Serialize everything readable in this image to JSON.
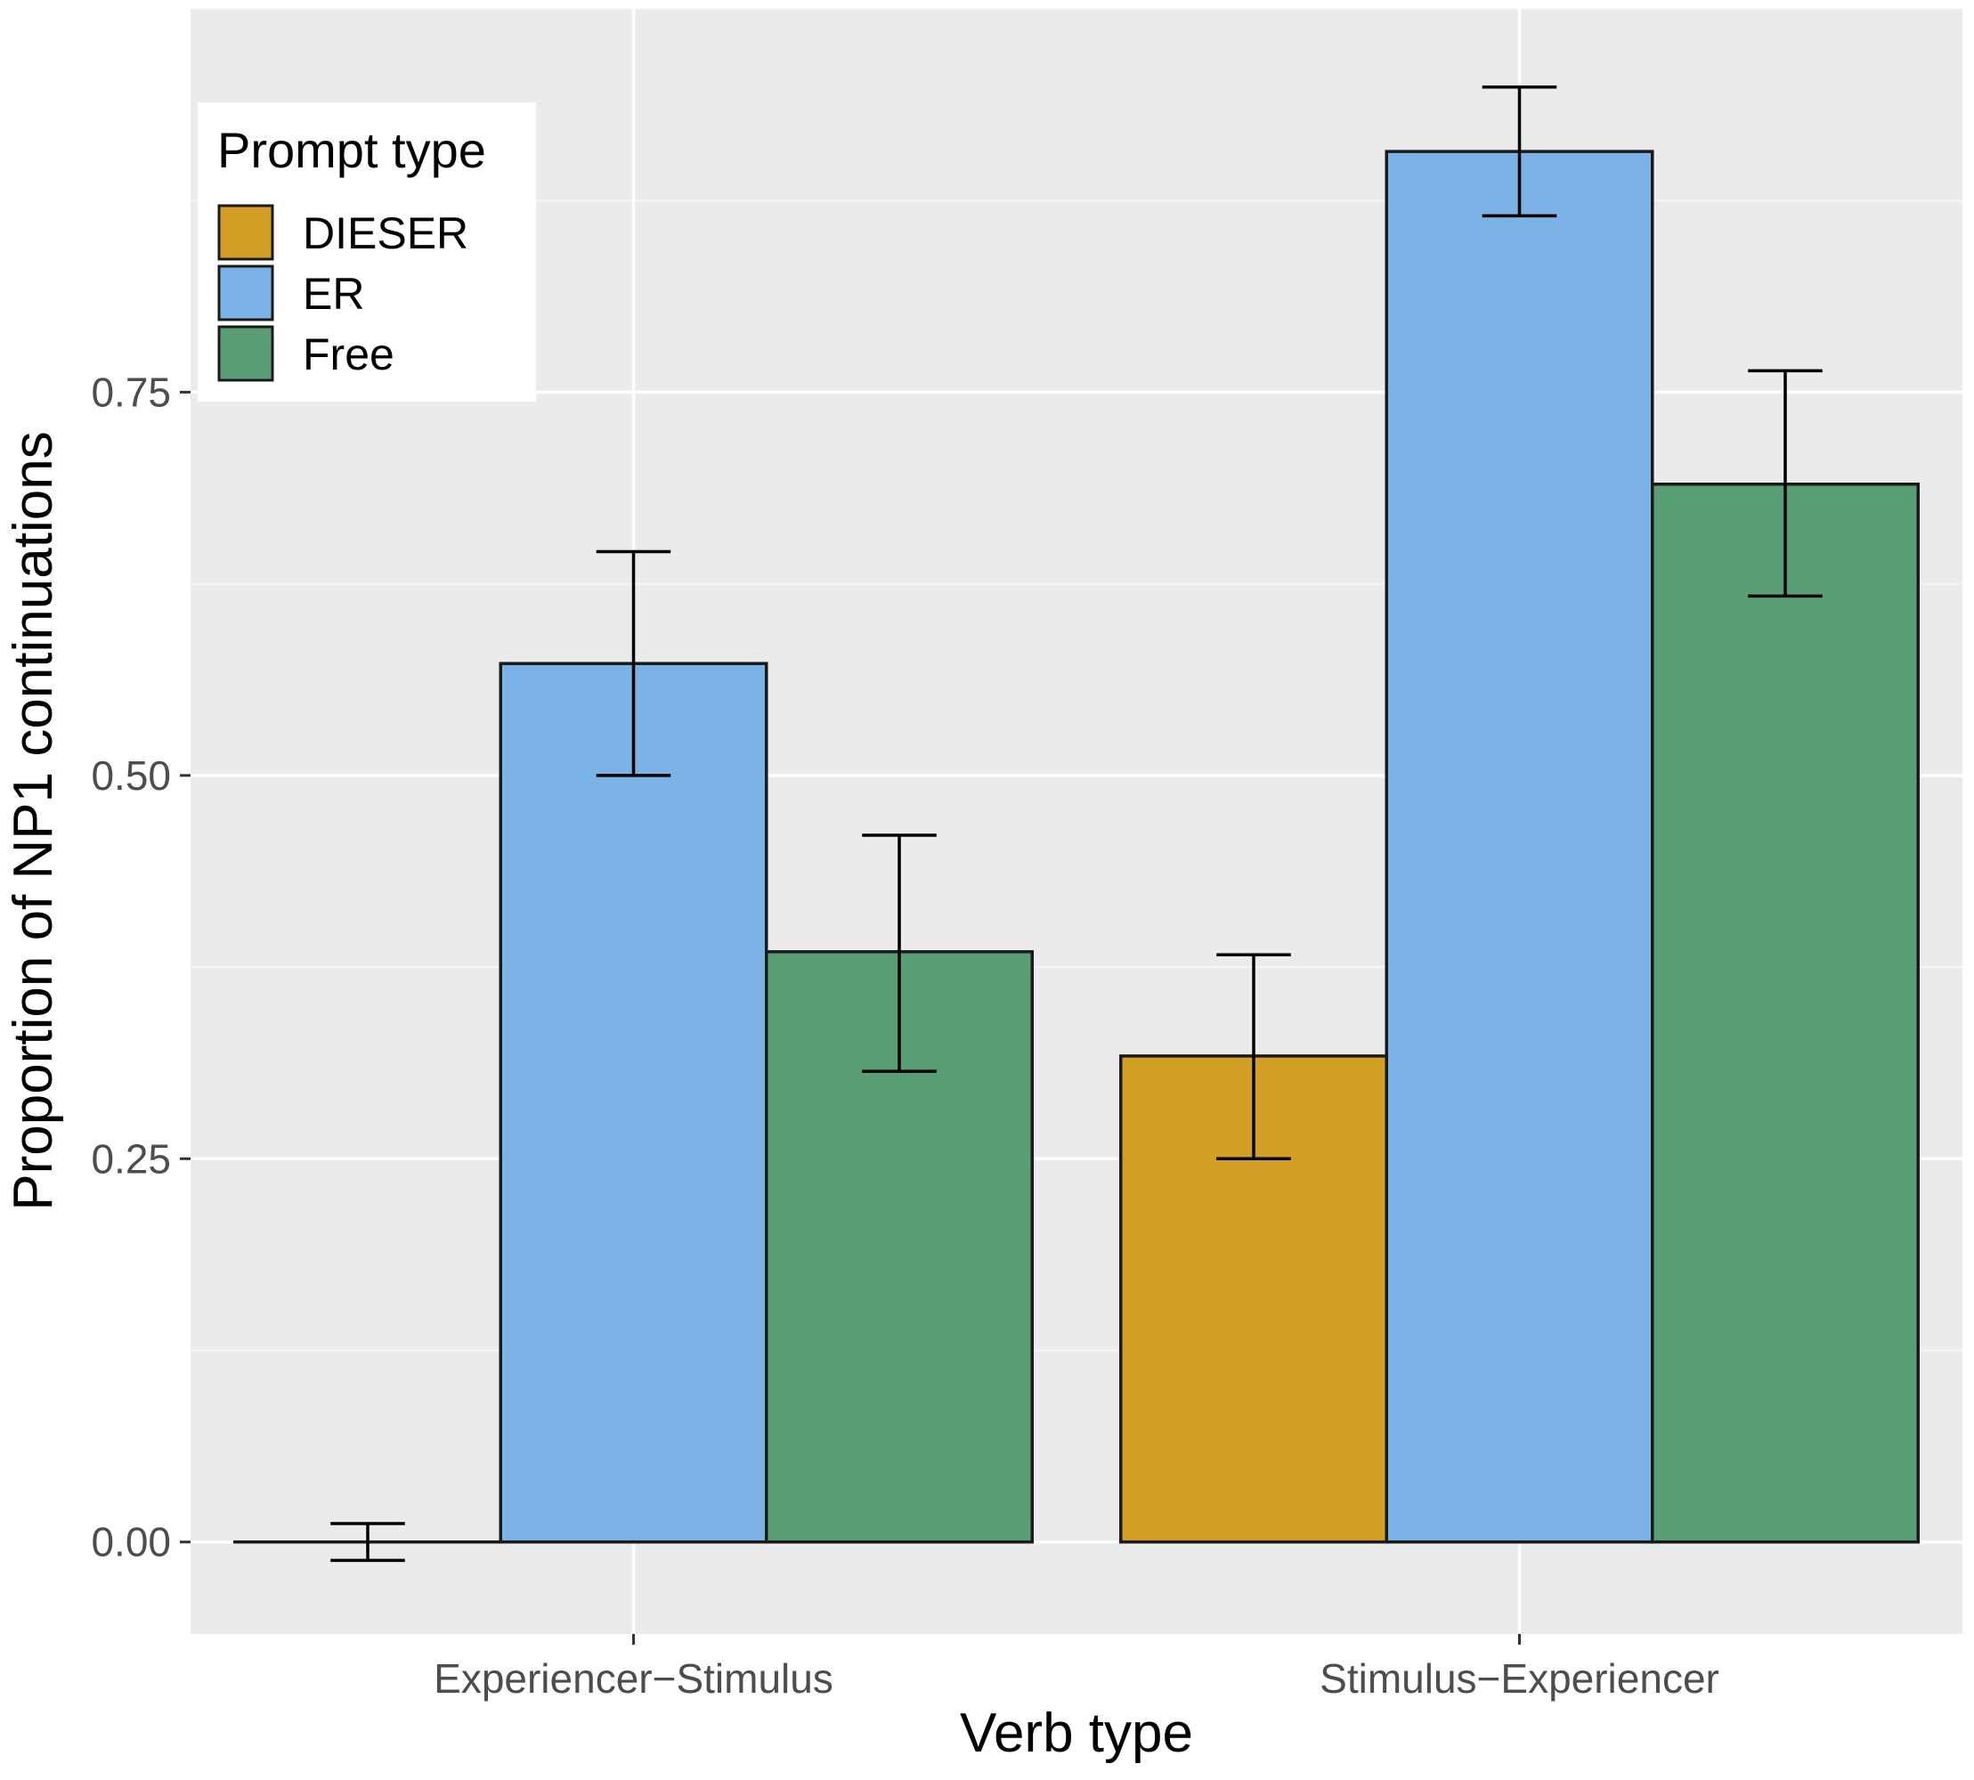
{
  "chart_data": {
    "type": "bar",
    "title": "",
    "xlabel": "Verb type",
    "ylabel": "Proportion of NP1 continuations",
    "categories": [
      "Experiencer−Stimulus",
      "Stimulus−Experiencer"
    ],
    "yticks": [
      "0.00",
      "0.25",
      "0.50",
      "0.75"
    ],
    "ytick_values": [
      0,
      0.25,
      0.5,
      0.75
    ],
    "ylim": [
      -0.06,
      1.0
    ],
    "legend": {
      "title": "Prompt type",
      "position": "top-left"
    },
    "series": [
      {
        "name": "DIESER",
        "color": "#d39e26",
        "values": [
          0.0,
          0.317
        ],
        "error_low": [
          -0.012,
          0.25
        ],
        "error_high": [
          0.012,
          0.383
        ]
      },
      {
        "name": "ER",
        "color": "#7bb3e6",
        "values": [
          0.573,
          0.907
        ],
        "error_low": [
          0.5,
          0.865
        ],
        "error_high": [
          0.646,
          0.949
        ]
      },
      {
        "name": "Free",
        "color": "#5a9e75",
        "values": [
          0.385,
          0.69
        ],
        "error_low": [
          0.307,
          0.617
        ],
        "error_high": [
          0.461,
          0.764
        ]
      }
    ],
    "grid": true,
    "colors": {
      "panel_background": "#ebebeb",
      "grid_major": "#ffffff",
      "grid_minor": "#f5f5f5",
      "bar_outline": "#1a1a1a",
      "error_bar": "#000000"
    }
  }
}
